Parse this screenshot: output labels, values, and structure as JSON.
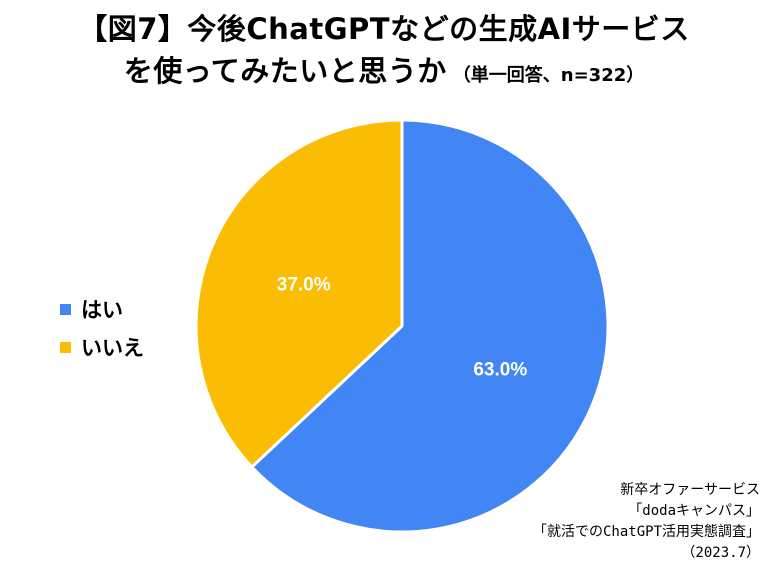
{
  "title": {
    "line1": "【図7】今後ChatGPTなどの生成AIサービス",
    "line2_main": "を使ってみたいと思うか",
    "line2_sub": "（単一回答、n=322）"
  },
  "chart_data": {
    "type": "pie",
    "categories": [
      "はい",
      "いいえ"
    ],
    "values": [
      63.0,
      37.0
    ],
    "labels": [
      "63.0%",
      "37.0%"
    ],
    "colors": [
      "#4285F4",
      "#FBBC04"
    ],
    "legend_placement": "left"
  },
  "source": {
    "line1": "新卒オファーサービス",
    "line2": "「dodaキャンパス」",
    "line3": "「就活でのChatGPT活用実態調査」",
    "line4": "（2023.7）"
  }
}
